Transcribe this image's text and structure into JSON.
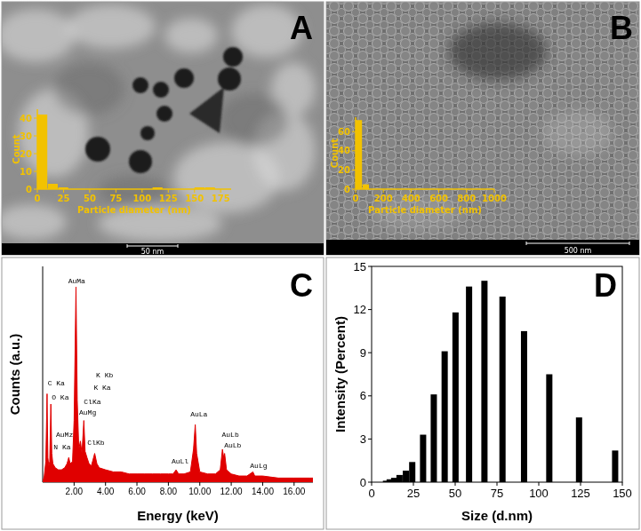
{
  "chart_data": [
    {
      "panel": "A",
      "type": "histogram",
      "xlabel": "Particle diameter (nm)",
      "ylabel": "Count",
      "bins": [
        0,
        10,
        20,
        30,
        40,
        50,
        60,
        70,
        80,
        90,
        100,
        110,
        120,
        130,
        140,
        150,
        160,
        170,
        180
      ],
      "values": [
        42,
        3,
        1,
        0,
        0,
        0,
        0,
        0,
        0,
        0,
        0,
        1,
        0,
        0,
        0,
        1,
        1,
        0
      ],
      "color": "#f2c200",
      "xlim": [
        0,
        185
      ],
      "ylim": [
        0,
        45
      ],
      "xticks": [
        0,
        25,
        50,
        75,
        100,
        125,
        150,
        175
      ],
      "yticks": [
        0,
        10,
        20,
        30,
        40
      ],
      "grid": false,
      "annotations": [
        "50 nm"
      ]
    },
    {
      "panel": "B",
      "type": "histogram",
      "xlabel": "Particle diameter (nm)",
      "ylabel": "Count",
      "bins": [
        0,
        50,
        100,
        150,
        200,
        250,
        300,
        350,
        400,
        450,
        500,
        550,
        600,
        650,
        700,
        750,
        800,
        850,
        900,
        950,
        1000
      ],
      "values": [
        72,
        5,
        0,
        0,
        0,
        0,
        0,
        0,
        0,
        0,
        0,
        0,
        0,
        0,
        0,
        0,
        0,
        0,
        0,
        0
      ],
      "color": "#f2c200",
      "xlim": [
        0,
        1000
      ],
      "ylim": [
        0,
        75
      ],
      "xticks": [
        0,
        200,
        400,
        600,
        800,
        1000
      ],
      "yticks": [
        0,
        20,
        40,
        60
      ],
      "grid": false,
      "annotations": [
        "500 nm"
      ]
    },
    {
      "panel": "C",
      "type": "area",
      "xlabel": "Energy (keV)",
      "ylabel": "Counts (a.u.)",
      "x": [
        0,
        0.1,
        0.2,
        0.28,
        0.33,
        0.39,
        0.45,
        0.52,
        0.58,
        0.65,
        0.8,
        1.0,
        1.2,
        1.4,
        1.55,
        1.66,
        1.75,
        1.9,
        2.0,
        2.12,
        2.2,
        2.3,
        2.4,
        2.5,
        2.62,
        2.7,
        2.82,
        2.95,
        3.1,
        3.31,
        3.45,
        3.6,
        4.0,
        4.5,
        5.0,
        5.5,
        6.0,
        6.5,
        7.0,
        7.5,
        8.0,
        8.3,
        8.49,
        8.65,
        9.0,
        9.4,
        9.6,
        9.71,
        9.8,
        10.0,
        10.5,
        11.0,
        11.3,
        11.44,
        11.52,
        11.58,
        11.7,
        12.0,
        12.5,
        13.0,
        13.38,
        13.5,
        14.0,
        15.0,
        16.0,
        17.0,
        17.2
      ],
      "values": [
        0,
        3,
        10,
        43,
        12,
        8,
        10,
        38,
        14,
        9,
        7,
        6,
        6,
        7,
        9,
        12,
        9,
        10,
        30,
        95,
        40,
        16,
        20,
        14,
        30,
        15,
        12,
        9,
        8,
        14,
        9,
        7,
        6,
        5,
        5,
        4,
        4,
        4,
        4,
        4,
        4,
        4,
        6,
        4,
        4,
        5,
        16,
        28,
        14,
        5,
        4,
        4,
        6,
        16,
        12,
        14,
        6,
        4,
        3,
        3,
        5,
        3,
        3,
        2,
        2,
        2,
        2
      ],
      "color": "#e00000",
      "xlim": [
        0,
        17.2
      ],
      "ylim": [
        0,
        105
      ],
      "xticks": [
        {
          "value": 2,
          "label": "2.00"
        },
        {
          "value": 4,
          "label": "4.00"
        },
        {
          "value": 6,
          "label": "6.00"
        },
        {
          "value": 8,
          "label": "8.00"
        },
        {
          "value": 10,
          "label": "10.00"
        },
        {
          "value": 12,
          "label": "12.00"
        },
        {
          "value": 14,
          "label": "14.00"
        },
        {
          "value": 16,
          "label": "16.00"
        }
      ],
      "tick_labels": "x",
      "grid": false,
      "annotations": [
        {
          "text": "C Ka",
          "x": 0.32,
          "y": 47
        },
        {
          "text": "O Ka",
          "x": 0.58,
          "y": 40
        },
        {
          "text": "N Ka",
          "x": 0.7,
          "y": 16
        },
        {
          "text": "AuMz",
          "x": 0.85,
          "y": 22
        },
        {
          "text": "AuMa",
          "x": 1.62,
          "y": 97
        },
        {
          "text": "AuMg",
          "x": 2.32,
          "y": 33
        },
        {
          "text": "ClKa",
          "x": 2.62,
          "y": 38
        },
        {
          "text": "ClKb",
          "x": 2.85,
          "y": 18
        },
        {
          "text": "K Ka",
          "x": 3.25,
          "y": 45
        },
        {
          "text": "K Kb",
          "x": 3.4,
          "y": 51
        },
        {
          "text": "AuLl",
          "x": 8.2,
          "y": 9
        },
        {
          "text": "AuLa",
          "x": 9.4,
          "y": 32
        },
        {
          "text": "AuLb",
          "x": 11.4,
          "y": 22
        },
        {
          "text": "AuLb",
          "x": 11.55,
          "y": 17
        },
        {
          "text": "AuLg",
          "x": 13.2,
          "y": 7
        }
      ]
    },
    {
      "panel": "D",
      "type": "bar",
      "xlabel": "Size (d.nm)",
      "ylabel": "Intensity (Percent)",
      "x": [
        8.6,
        10.8,
        13.5,
        16.7,
        20.5,
        24.3,
        30.8,
        37.2,
        43.7,
        50.2,
        58.3,
        67.5,
        78.3,
        91.2,
        106.3,
        124.1,
        145.7
      ],
      "values": [
        0.1,
        0.2,
        0.3,
        0.5,
        0.8,
        1.4,
        3.3,
        6.1,
        9.1,
        11.8,
        13.6,
        14.0,
        12.9,
        10.5,
        7.5,
        4.5,
        2.2
      ],
      "color": "#000000",
      "xlim": [
        0,
        150
      ],
      "ylim": [
        0,
        15
      ],
      "xticks": [
        0,
        25,
        50,
        75,
        100,
        125,
        150
      ],
      "yticks": [
        0,
        3,
        6,
        9,
        12,
        15
      ],
      "grid": false
    }
  ]
}
